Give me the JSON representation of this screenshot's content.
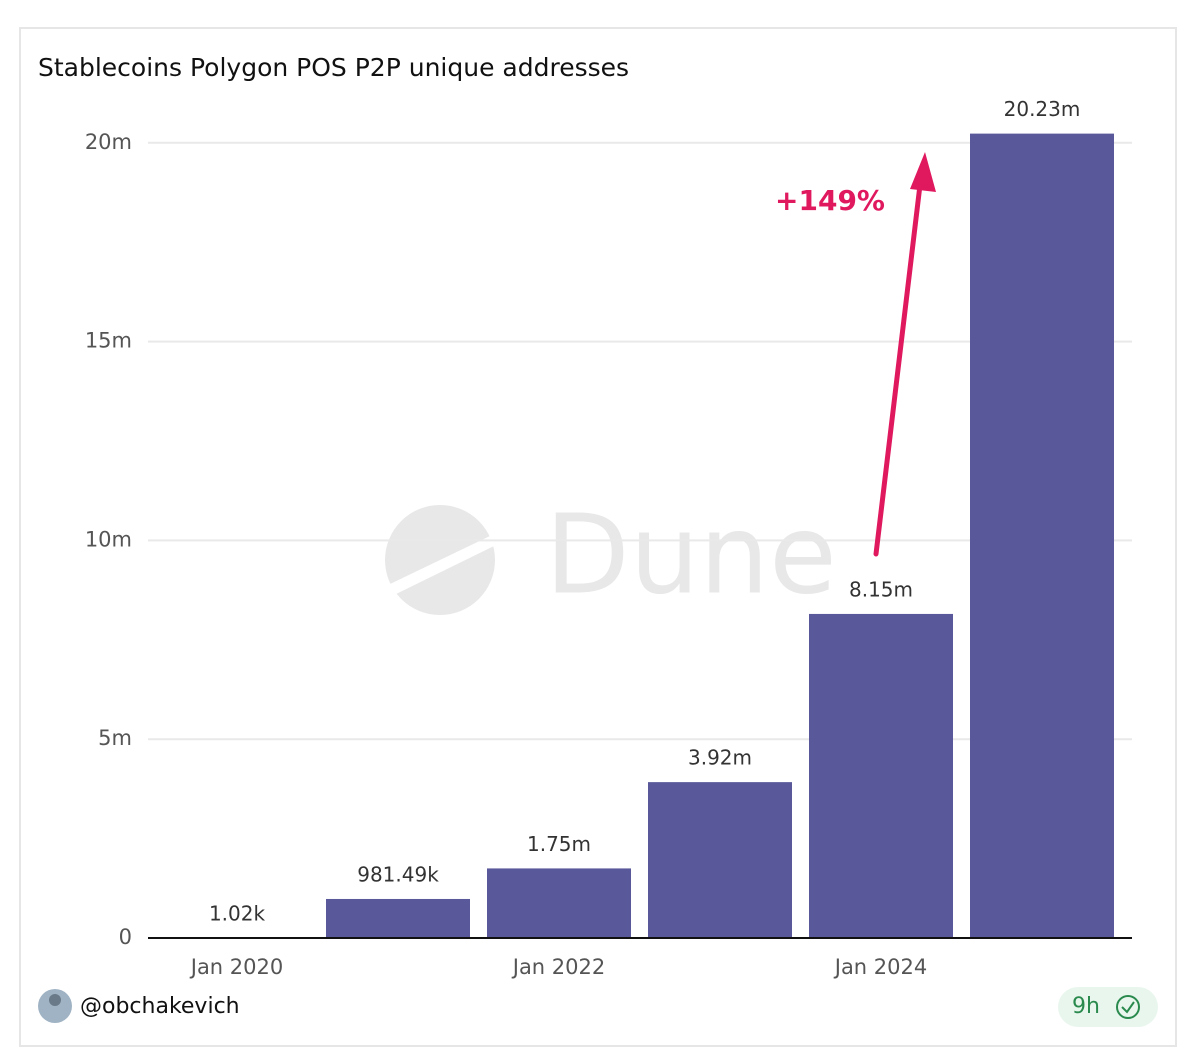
{
  "chart_data": {
    "type": "bar",
    "title": "Stablecoins Polygon POS P2P unique addresses",
    "categories": [
      "Jan 2020",
      null,
      "Jan 2022",
      null,
      "Jan 2024",
      null
    ],
    "values": [
      1020,
      981490,
      1750000,
      3920000,
      8150000,
      20230000
    ],
    "value_labels": [
      "1.02k",
      "981.49k",
      "1.75m",
      "3.92m",
      "8.15m",
      "20.23m"
    ],
    "color": "#58589a",
    "ylim": [
      0,
      21000000
    ],
    "yticks": [
      0,
      {
        "value": 5000000,
        "label": "5m"
      },
      {
        "value": 10000000,
        "label": "10m"
      },
      {
        "value": 15000000,
        "label": "15m"
      },
      {
        "value": 20000000,
        "label": "20m"
      }
    ],
    "grid": true,
    "annotation": "+149%",
    "watermark": "Dune"
  },
  "footer": {
    "author": "@obchakevich",
    "age": "9h"
  }
}
